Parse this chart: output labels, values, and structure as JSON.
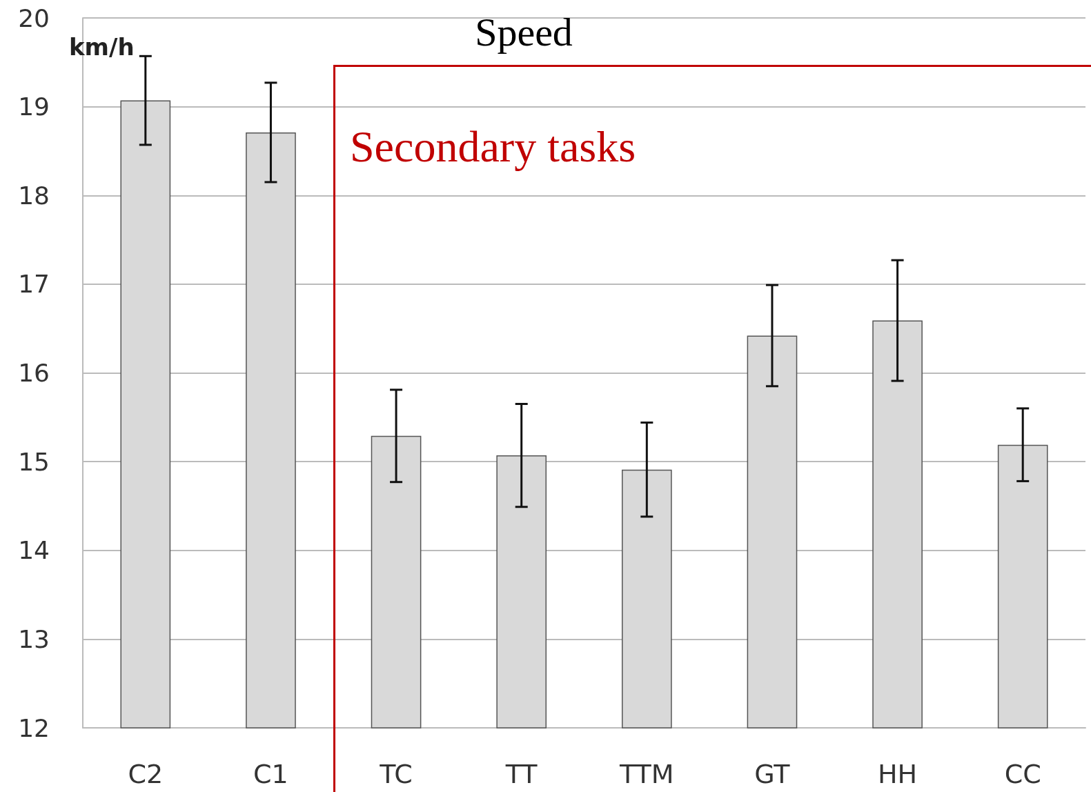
{
  "chart_data": {
    "type": "bar",
    "title": "Speed",
    "ylabel": "km/h",
    "categories": [
      "C2",
      "C1",
      "TC",
      "TT",
      "TTM",
      "GT",
      "HH",
      "CC"
    ],
    "values": [
      19.07,
      18.71,
      15.29,
      15.07,
      14.91,
      16.42,
      16.59,
      15.19
    ],
    "errors": [
      0.5,
      0.56,
      0.52,
      0.58,
      0.53,
      0.57,
      0.68,
      0.41
    ],
    "color": "#d9d9d9",
    "ylim": [
      12,
      20
    ],
    "yticks": [
      12,
      13,
      14,
      15,
      16,
      17,
      18,
      19,
      20
    ],
    "grid": "y",
    "annotations": [
      "Secondary tasks"
    ]
  }
}
